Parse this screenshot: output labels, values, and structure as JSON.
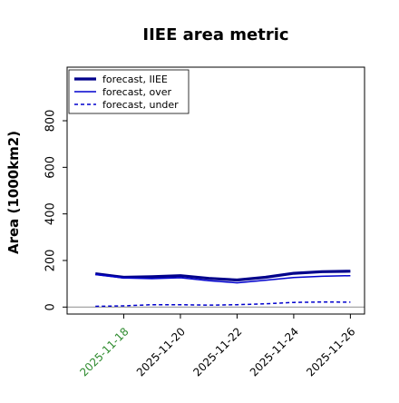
{
  "chart_data": {
    "type": "line",
    "title": "IIEE area metric",
    "xlabel": "",
    "ylabel": "Area (1000km2)",
    "x_ticks": [
      "2025-11-18",
      "2025-11-20",
      "2025-11-22",
      "2025-11-24",
      "2025-11-26"
    ],
    "x_tick_colors": [
      "#2e8b2e",
      "#000000",
      "#000000",
      "#000000",
      "#000000"
    ],
    "x": [
      "2025-11-17",
      "2025-11-18",
      "2025-11-19",
      "2025-11-20",
      "2025-11-21",
      "2025-11-22",
      "2025-11-23",
      "2025-11-24",
      "2025-11-25",
      "2025-11-26"
    ],
    "xlim": [
      "2025-11-16",
      "2025-11-26.5"
    ],
    "y_ticks": [
      0,
      200,
      400,
      600,
      800
    ],
    "ylim": [
      -30,
      1030
    ],
    "legend_position": "upper left",
    "series": [
      {
        "name": "forecast, IIEE",
        "style": "solid-thick",
        "color": "#00008b",
        "values": [
          143,
          128,
          130,
          135,
          123,
          116,
          128,
          145,
          152,
          154
        ]
      },
      {
        "name": "forecast, over",
        "style": "solid",
        "color": "#0000cd",
        "values": [
          140,
          125,
          122,
          126,
          113,
          104,
          115,
          127,
          132,
          135
        ]
      },
      {
        "name": "forecast, under",
        "style": "dashed",
        "color": "#0000cd",
        "values": [
          3,
          5,
          10,
          10,
          8,
          10,
          14,
          20,
          22,
          21
        ]
      }
    ],
    "zero_line": {
      "color": "#9a9a9a",
      "value": 0
    }
  }
}
